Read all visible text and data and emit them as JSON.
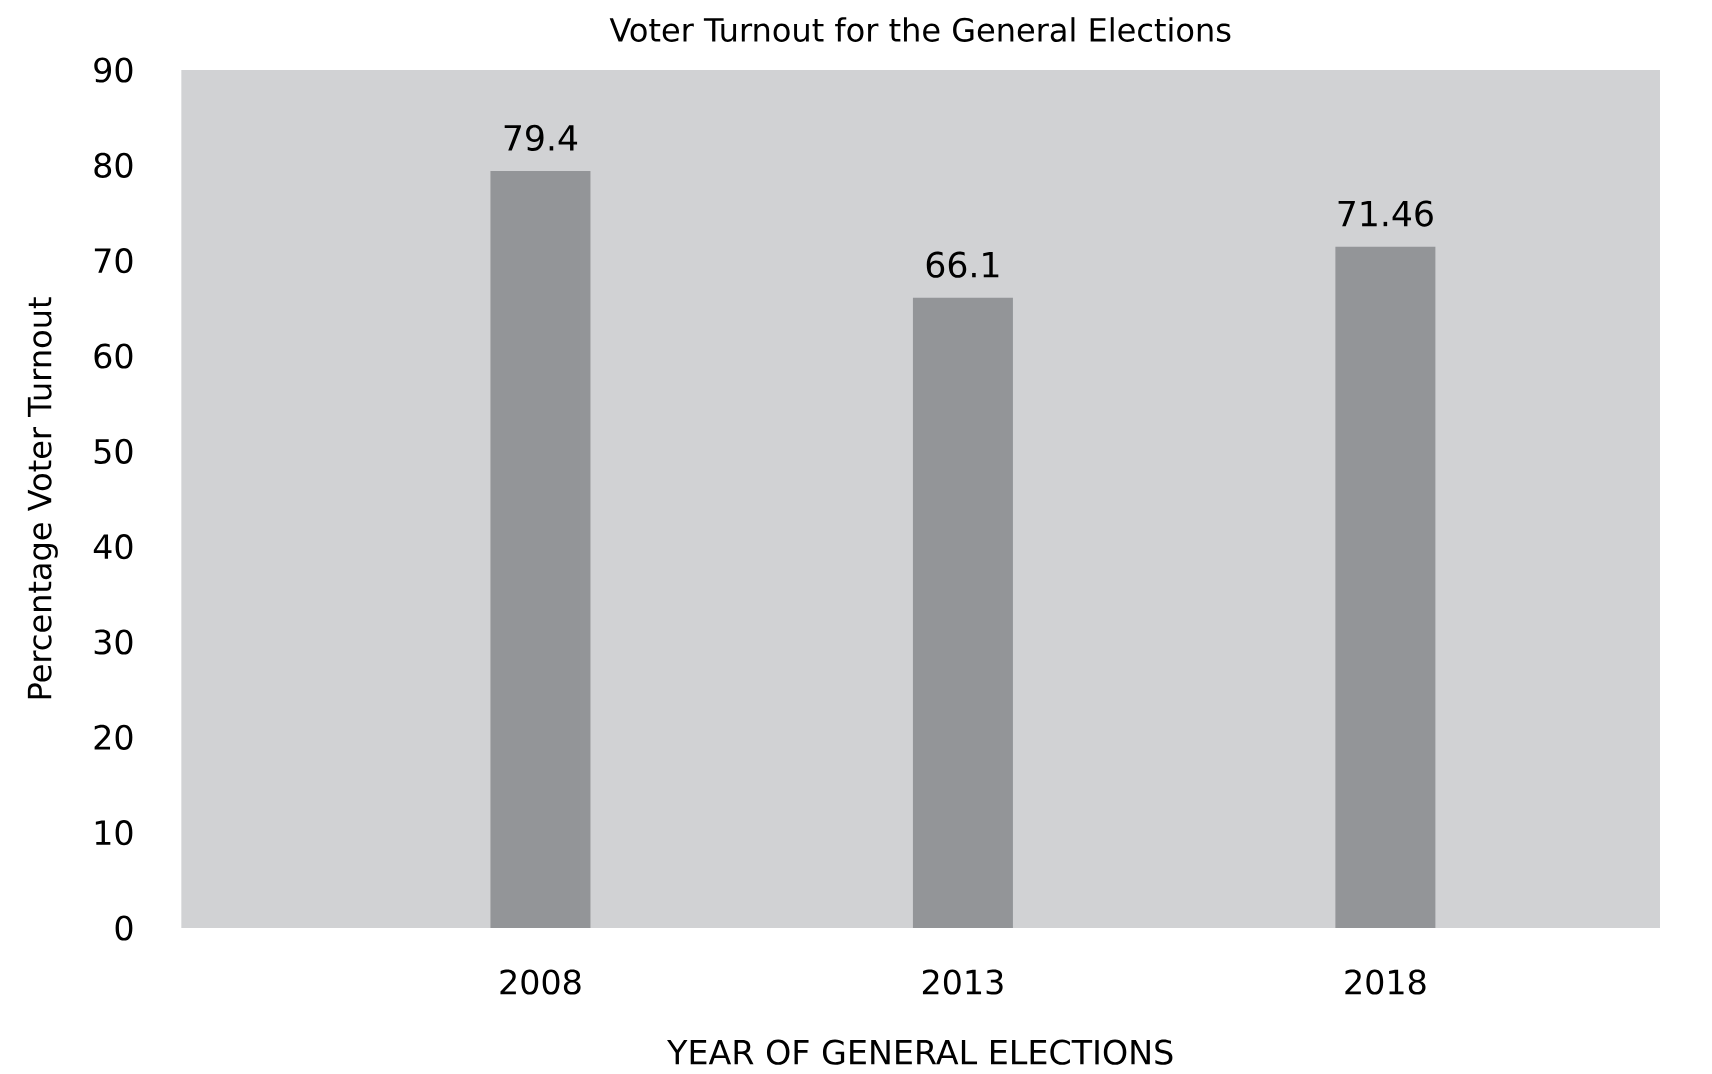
{
  "chart_data": {
    "type": "bar",
    "title": "Voter Turnout for the General Elections",
    "xlabel": "YEAR OF GENERAL ELECTIONS",
    "ylabel": "Percentage Voter Turnout",
    "categories": [
      "2008",
      "2013",
      "2018"
    ],
    "values": [
      79.4,
      66.1,
      71.46
    ],
    "color": "#939598",
    "data_labels": true,
    "ylim": [
      0,
      90
    ],
    "yticks": [
      0,
      10,
      20,
      30,
      40,
      50,
      60,
      70,
      80,
      90
    ]
  }
}
